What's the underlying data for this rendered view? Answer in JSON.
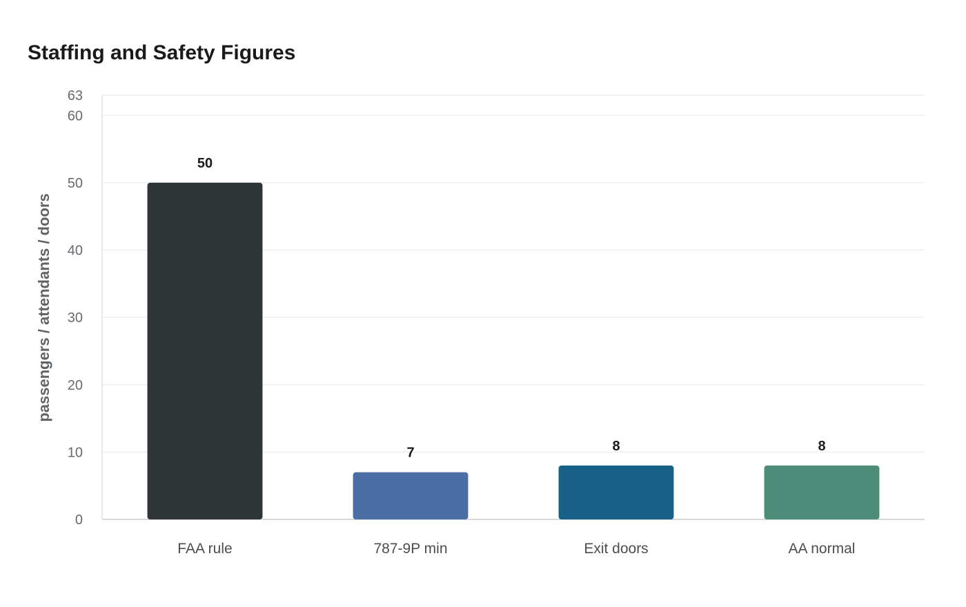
{
  "chart_data": {
    "type": "bar",
    "title": "Staffing and Safety Figures",
    "xlabel": "",
    "ylabel": "passengers / attendants / doors",
    "categories": [
      "FAA rule",
      "787-9P min",
      "Exit doors",
      "AA normal"
    ],
    "values": [
      50,
      7,
      8,
      8
    ],
    "colors": [
      "#2d3536",
      "#4a6fa5",
      "#176187",
      "#4e8c7a"
    ],
    "ylim": [
      0,
      63
    ],
    "yticks": [
      0,
      10,
      20,
      30,
      40,
      50,
      60,
      63
    ],
    "grid": true,
    "legend": "none"
  }
}
